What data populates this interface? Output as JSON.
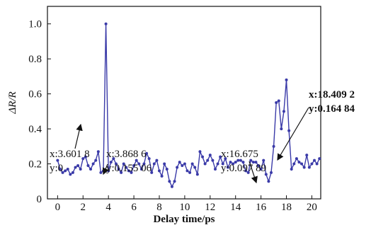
{
  "chart_data": {
    "type": "line",
    "x_label": "Delay time/ps",
    "y_label": "ΔR/R",
    "x": [
      0,
      0.2,
      0.4,
      0.6,
      0.8,
      1.0,
      1.2,
      1.4,
      1.6,
      1.8,
      2.0,
      2.2,
      2.4,
      2.6,
      2.8,
      3.0,
      3.2,
      3.4,
      3.6,
      3.8,
      4.0,
      4.2,
      4.4,
      4.6,
      4.8,
      5.0,
      5.2,
      5.4,
      5.6,
      5.8,
      6.0,
      6.2,
      6.4,
      6.6,
      6.8,
      7.0,
      7.2,
      7.4,
      7.6,
      7.8,
      8.0,
      8.2,
      8.4,
      8.6,
      8.8,
      9.0,
      9.2,
      9.4,
      9.6,
      9.8,
      10.0,
      10.2,
      10.4,
      10.6,
      10.8,
      11.0,
      11.2,
      11.4,
      11.6,
      11.8,
      12.0,
      12.2,
      12.4,
      12.6,
      12.8,
      13.0,
      13.2,
      13.4,
      13.6,
      13.8,
      14.0,
      14.2,
      14.4,
      14.6,
      14.8,
      15.0,
      15.2,
      15.4,
      15.6,
      15.8,
      16.0,
      16.2,
      16.4,
      16.6,
      16.8,
      17.0,
      17.2,
      17.4,
      17.6,
      17.8,
      18.0,
      18.2,
      18.4,
      18.6,
      18.8,
      19.0,
      19.2,
      19.4,
      19.6,
      19.8,
      20.0,
      20.2,
      20.4,
      20.6
    ],
    "series": [
      {
        "color": "#3a3aa8",
        "values": [
          0.22,
          0.17,
          0.15,
          0.16,
          0.17,
          0.14,
          0.15,
          0.18,
          0.19,
          0.17,
          0.23,
          0.24,
          0.19,
          0.17,
          0.2,
          0.22,
          0.27,
          0.15,
          0.16,
          1.0,
          0.16,
          0.21,
          0.23,
          0.2,
          0.17,
          0.15,
          0.2,
          0.18,
          0.16,
          0.15,
          0.19,
          0.22,
          0.2,
          0.17,
          0.2,
          0.26,
          0.23,
          0.15,
          0.2,
          0.22,
          0.16,
          0.13,
          0.2,
          0.17,
          0.1,
          0.07,
          0.1,
          0.18,
          0.21,
          0.19,
          0.2,
          0.16,
          0.15,
          0.2,
          0.18,
          0.14,
          0.27,
          0.24,
          0.2,
          0.22,
          0.25,
          0.22,
          0.17,
          0.2,
          0.24,
          0.2,
          0.23,
          0.18,
          0.21,
          0.2,
          0.21,
          0.22,
          0.22,
          0.21,
          0.16,
          0.15,
          0.22,
          0.21,
          0.21,
          0.19,
          0.17,
          0.22,
          0.14,
          0.1,
          0.15,
          0.3,
          0.55,
          0.56,
          0.4,
          0.5,
          0.68,
          0.39,
          0.17,
          0.2,
          0.23,
          0.21,
          0.2,
          0.18,
          0.25,
          0.18,
          0.2,
          0.22,
          0.2,
          0.23
        ]
      }
    ],
    "xlim": [
      -0.8,
      20.7
    ],
    "ylim": [
      0,
      1.1
    ],
    "xticks": [
      0,
      2,
      4,
      6,
      8,
      10,
      12,
      14,
      16,
      18,
      20
    ],
    "yticks": [
      0,
      0.2,
      0.4,
      0.6,
      0.8,
      {
        "value": 1,
        "label": "1.0"
      }
    ],
    "annotations": [
      {
        "lines": [
          "x:3.601 8",
          "y:0"
        ]
      },
      {
        "lines": [
          "x:3.868 6",
          "y:0.155 06"
        ]
      },
      {
        "lines": [
          "x:16.675",
          "y:0.097 89"
        ]
      },
      {
        "lines": [
          "x:18.409 2",
          "y:0.164 84"
        ]
      }
    ]
  }
}
